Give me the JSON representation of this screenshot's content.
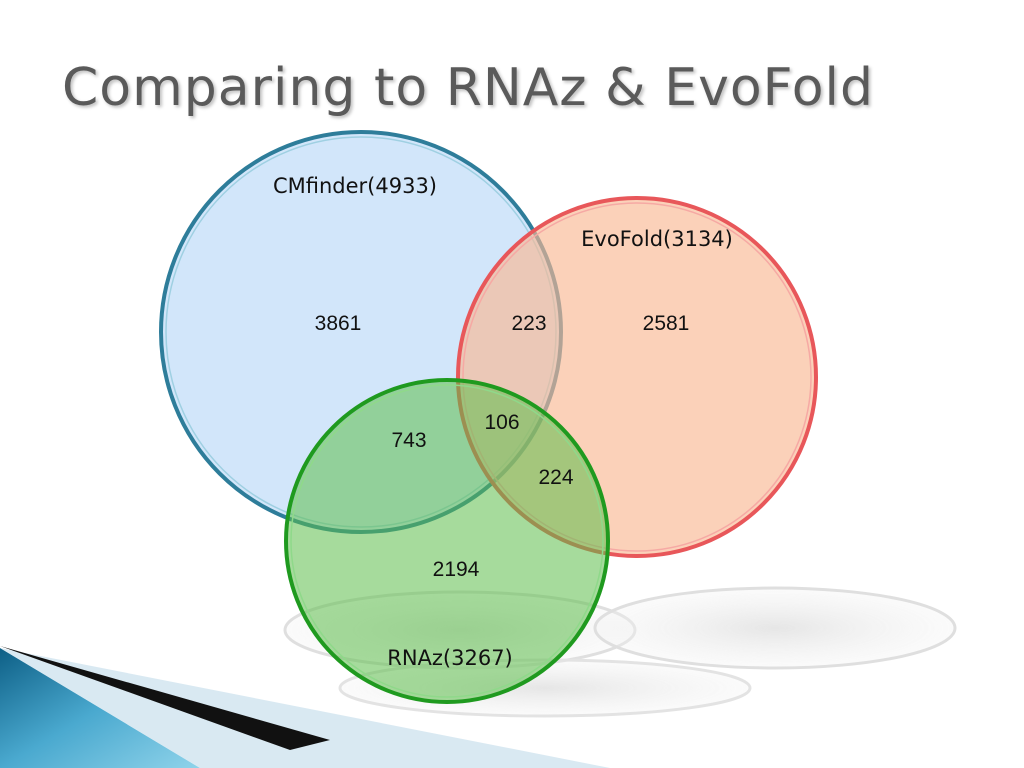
{
  "title": "Comparing to RNAz & EvoFold",
  "sets": {
    "cmfinder": {
      "label": "CMfinder(4933)",
      "fill": "#cfe3f9",
      "stroke": "#2e7d9a"
    },
    "evofold": {
      "label": "EvoFold(3134)",
      "fill": "#f9c4a4",
      "stroke": "#e8575a"
    },
    "rnaz": {
      "label": "RNAz(3267)",
      "fill": "#6cc45a",
      "stroke": "#1f9a1f"
    }
  },
  "regions": {
    "cmfinder_only": "3861",
    "cmfinder_evofold": "223",
    "evofold_only": "2581",
    "all_three": "106",
    "cmfinder_rnaz": "743",
    "evofold_rnaz": "224",
    "rnaz_only": "2194"
  },
  "decor": {
    "footer_gradient": [
      "#0d5f86",
      "#5bc0de"
    ]
  }
}
